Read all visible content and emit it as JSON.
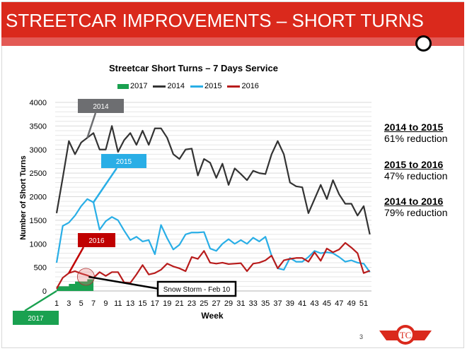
{
  "slide": {
    "title": "STREETCAR IMPROVEMENTS – SHORT TURNS",
    "page_number": "3",
    "accent": "#da291c"
  },
  "notes": [
    {
      "heading": "2014 to 2015",
      "text": "61% reduction"
    },
    {
      "heading": "2015 to 2016",
      "text": "47% reduction"
    },
    {
      "heading": "2014 to 2016",
      "text": "79% reduction"
    }
  ],
  "chart_data": {
    "type": "line",
    "title": "Streetcar Short Turns – 7 Days Service",
    "xlabel": "Week",
    "ylabel": "Number of Short Turns",
    "ylim": [
      0,
      4000
    ],
    "yticks": [
      0,
      500,
      1000,
      1500,
      2000,
      2500,
      3000,
      3500,
      4000
    ],
    "xticks": [
      1,
      3,
      5,
      7,
      9,
      11,
      13,
      15,
      17,
      19,
      21,
      23,
      25,
      27,
      29,
      31,
      33,
      35,
      37,
      39,
      41,
      43,
      45,
      47,
      49,
      51
    ],
    "grid": true,
    "legend": "top",
    "legend_labels": [
      "2017",
      "2014",
      "2015",
      "2016"
    ],
    "series": [
      {
        "name": "2017",
        "type": "area",
        "color": "#1aa150",
        "x": [
          1,
          2,
          3,
          4,
          5,
          6
        ],
        "values": [
          100,
          100,
          150,
          200,
          200,
          250
        ]
      },
      {
        "name": "2014",
        "color": "#333333",
        "values": [
          1650,
          2400,
          3180,
          2900,
          3150,
          3250,
          3350,
          3000,
          3000,
          3500,
          2950,
          3200,
          3350,
          3100,
          3400,
          3100,
          3450,
          3450,
          3250,
          2900,
          2800,
          3000,
          3020,
          2450,
          2800,
          2720,
          2400,
          2700,
          2250,
          2600,
          2480,
          2350,
          2550,
          2500,
          2480,
          2900,
          3180,
          2900,
          2300,
          2220,
          2200,
          1650,
          1950,
          2250,
          1950,
          2350,
          2050,
          1850,
          1850,
          1600,
          1800,
          1200
        ]
      },
      {
        "name": "2015",
        "color": "#29aee6",
        "values": [
          600,
          1380,
          1450,
          1600,
          1800,
          1950,
          1880,
          1300,
          1480,
          1570,
          1500,
          1280,
          1080,
          1150,
          1050,
          1080,
          780,
          1400,
          1120,
          880,
          980,
          1200,
          1240,
          1240,
          1250,
          900,
          850,
          1000,
          1100,
          1000,
          1080,
          1000,
          1130,
          1050,
          1150,
          750,
          480,
          450,
          700,
          620,
          620,
          720,
          850,
          800,
          820,
          800,
          720,
          620,
          650,
          600,
          580,
          400
        ]
      },
      {
        "name": "2016",
        "color": "#b81c1c",
        "values": [
          50,
          280,
          380,
          420,
          370,
          330,
          280,
          400,
          320,
          400,
          400,
          180,
          170,
          350,
          550,
          350,
          380,
          450,
          580,
          520,
          480,
          420,
          720,
          680,
          850,
          600,
          580,
          600,
          570,
          580,
          590,
          420,
          580,
          600,
          650,
          750,
          480,
          650,
          680,
          700,
          700,
          620,
          820,
          640,
          900,
          820,
          880,
          1020,
          920,
          800,
          380,
          430
        ]
      }
    ],
    "annotations": [
      {
        "text": "2014",
        "color": "#6d6e71",
        "week": 6
      },
      {
        "text": "2015",
        "color": "#29aee6",
        "week": 7
      },
      {
        "text": "2016",
        "color": "#c00000",
        "week": 3
      },
      {
        "text": "2017",
        "color": "#1aa150",
        "week": 1
      },
      {
        "text": "Snow Storm - Feb 10",
        "color": "#000000",
        "week": 6
      }
    ]
  }
}
